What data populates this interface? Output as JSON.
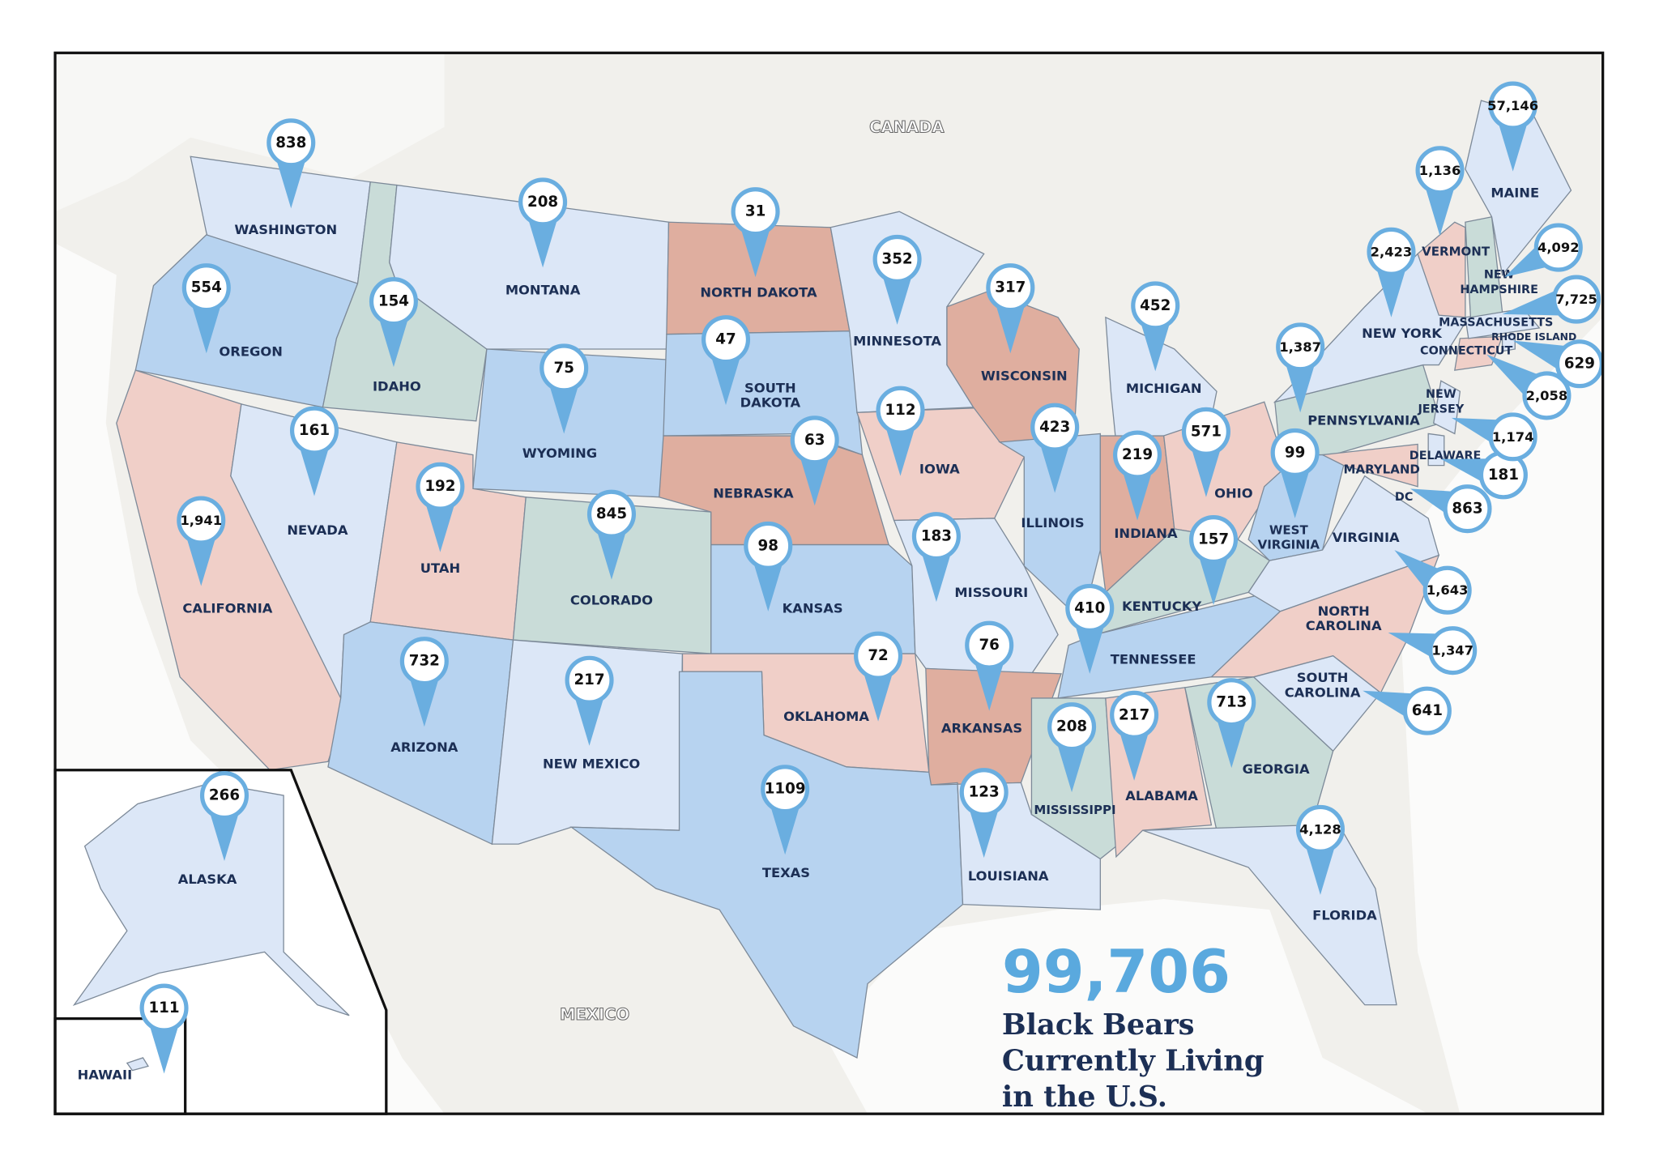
{
  "map_labels": [
    "CANADA",
    "MEXICO",
    "DC"
  ],
  "states": [
    {
      "name": "WASHINGTON",
      "value": 838,
      "color": "#dce7f7"
    },
    {
      "name": "OREGON",
      "value": 554,
      "color": "#b7d3f0"
    },
    {
      "name": "CALIFORNIA",
      "value": 1941,
      "label": "1,941",
      "color": "#f0cfc8"
    },
    {
      "name": "NEVADA",
      "value": 161,
      "color": "#dce7f7"
    },
    {
      "name": "IDAHO",
      "value": 154,
      "color": "#c9dcd8"
    },
    {
      "name": "MONTANA",
      "value": 208,
      "color": "#dce7f7"
    },
    {
      "name": "WYOMING",
      "value": 75,
      "color": "#b7d3f0"
    },
    {
      "name": "UTAH",
      "value": 192,
      "color": "#f0cfc8"
    },
    {
      "name": "ARIZONA",
      "value": 732,
      "color": "#b7d3f0"
    },
    {
      "name": "COLORADO",
      "value": 845,
      "color": "#c9dcd8"
    },
    {
      "name": "NEW MEXICO",
      "value": 217,
      "color": "#dce7f7"
    },
    {
      "name": "NORTH DAKOTA",
      "value": 31,
      "color": "#dfae9f"
    },
    {
      "name": "SOUTH DAKOTA",
      "value": 47,
      "color": "#b7d3f0"
    },
    {
      "name": "NEBRASKA",
      "value": 63,
      "color": "#dfae9f"
    },
    {
      "name": "KANSAS",
      "value": 98,
      "color": "#b7d3f0"
    },
    {
      "name": "OKLAHOMA",
      "value": 72,
      "color": "#f0cfc8"
    },
    {
      "name": "TEXAS",
      "value": 1109,
      "color": "#b7d3f0"
    },
    {
      "name": "MINNESOTA",
      "value": 352,
      "color": "#dce7f7"
    },
    {
      "name": "IOWA",
      "value": 112,
      "color": "#f0cfc8"
    },
    {
      "name": "MISSOURI",
      "value": 183,
      "color": "#dce7f7"
    },
    {
      "name": "ARKANSAS",
      "value": 76,
      "color": "#dfae9f"
    },
    {
      "name": "LOUISIANA",
      "value": 123,
      "color": "#dce7f7"
    },
    {
      "name": "WISCONSIN",
      "value": 317,
      "color": "#dfae9f"
    },
    {
      "name": "ILLINOIS",
      "value": 423,
      "color": "#b7d3f0"
    },
    {
      "name": "MICHIGAN",
      "value": 452,
      "color": "#dce7f7"
    },
    {
      "name": "INDIANA",
      "value": 219,
      "color": "#dfae9f"
    },
    {
      "name": "OHIO",
      "value": 571,
      "color": "#f0cfc8"
    },
    {
      "name": "KENTUCKY",
      "value": 157,
      "color": "#c9dcd8"
    },
    {
      "name": "TENNESSEE",
      "value": 410,
      "color": "#b7d3f0"
    },
    {
      "name": "MISSISSIPPI",
      "value": 208,
      "color": "#c9dcd8"
    },
    {
      "name": "ALABAMA",
      "value": 217,
      "color": "#f0cfc8"
    },
    {
      "name": "GEORGIA",
      "value": 713,
      "color": "#c9dcd8"
    },
    {
      "name": "FLORIDA",
      "value": 4128,
      "label": "4,128",
      "color": "#dce7f7"
    },
    {
      "name": "WEST VIRGINIA",
      "value": 99,
      "color": "#b7d3f0"
    },
    {
      "name": "VIRGINIA",
      "value": 1643,
      "label": "1,643",
      "color": "#dce7f7"
    },
    {
      "name": "NORTH CAROLINA",
      "value": 1347,
      "label": "1,347",
      "color": "#f0cfc8"
    },
    {
      "name": "SOUTH CAROLINA",
      "value": 641,
      "color": "#dce7f7"
    },
    {
      "name": "PENNSYLVANIA",
      "value": 1387,
      "label": "1,387",
      "color": "#c9dcd8"
    },
    {
      "name": "NEW YORK",
      "value": 2423,
      "label": "2,423",
      "color": "#dce7f7"
    },
    {
      "name": "MARYLAND",
      "value": 863,
      "color": "#f0cfc8"
    },
    {
      "name": "DELAWARE",
      "value": 181,
      "color": "#dce7f7"
    },
    {
      "name": "NEW JERSEY",
      "value": 1174,
      "label": "1,174",
      "color": "#dce7f7"
    },
    {
      "name": "CONNECTICUT",
      "value": 2058,
      "label": "2,058",
      "color": "#f0cfc8"
    },
    {
      "name": "RHODE ISLAND",
      "value": 629,
      "color": "#dce7f7"
    },
    {
      "name": "MASSACHUSETTS",
      "value": 7725,
      "label": "7,725",
      "color": "#dce7f7"
    },
    {
      "name": "NEW HAMPSHIRE",
      "value": 4092,
      "label": "4,092",
      "color": "#c9dcd8"
    },
    {
      "name": "VERMONT",
      "value": 1136,
      "label": "1,136",
      "color": "#f0cfc8"
    },
    {
      "name": "MAINE",
      "value": 57146,
      "label": "57,146",
      "color": "#dce7f7"
    },
    {
      "name": "ALASKA",
      "value": 266,
      "color": "#dce7f7"
    },
    {
      "name": "HAWAII",
      "value": 111,
      "color": "#dce7f7"
    }
  ],
  "total": {
    "value": 99706,
    "label": "99,706"
  },
  "caption": [
    "Black Bears",
    "Currently Living",
    "in the U.S."
  ]
}
